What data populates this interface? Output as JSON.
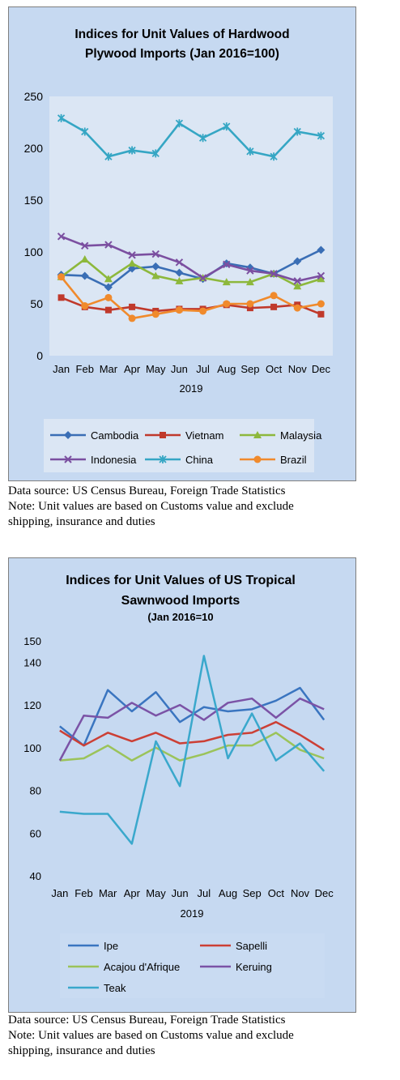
{
  "charts": [
    {
      "chart_data": {
        "type": "line",
        "title_lines": [
          "Indices for Unit Values of Hardwood",
          "Plywood Imports (Jan 2016=100)"
        ],
        "categories": [
          "Jan",
          "Feb",
          "Mar",
          "Apr",
          "May",
          "Jun",
          "Jul",
          "Aug",
          "Sep",
          "Oct",
          "Nov",
          "Dec"
        ],
        "xlabel": "2019",
        "ylim": [
          0,
          250
        ],
        "yticks": [
          0,
          50,
          100,
          150,
          200,
          250
        ],
        "grid": false,
        "legend_position": "bottom",
        "series": [
          {
            "name": "Cambodia",
            "values": [
              78,
              77,
              66,
              84,
              86,
              80,
              74,
              89,
              85,
              79,
              91,
              102
            ],
            "color": "#3a6eb5",
            "marker": "diamond"
          },
          {
            "name": "Vietnam",
            "values": [
              56,
              47,
              44,
              47,
              43,
              45,
              45,
              49,
              46,
              47,
              49,
              40
            ],
            "color": "#c0392b",
            "marker": "square"
          },
          {
            "name": "Malaysia",
            "values": [
              76,
              93,
              74,
              89,
              77,
              72,
              75,
              71,
              71,
              79,
              67,
              74
            ],
            "color": "#8db83c",
            "marker": "triangle"
          },
          {
            "name": "Indonesia",
            "values": [
              115,
              106,
              107,
              97,
              98,
              90,
              75,
              88,
              82,
              79,
              72,
              77
            ],
            "color": "#7b4fa0",
            "marker": "x"
          },
          {
            "name": "China",
            "values": [
              229,
              216,
              192,
              198,
              195,
              224,
              210,
              221,
              197,
              192,
              216,
              212
            ],
            "color": "#35a6c4",
            "marker": "star"
          },
          {
            "name": "Brazil",
            "values": [
              76,
              48,
              56,
              36,
              40,
              44,
              43,
              50,
              50,
              58,
              46,
              50
            ],
            "color": "#f08a2c",
            "marker": "circle"
          }
        ]
      },
      "notes": [
        "Data source: US Census Bureau, Foreign Trade Statistics",
        "Note: Unit values are based on Customs value and exclude",
        "shipping, insurance and duties"
      ]
    },
    {
      "chart_data": {
        "type": "line",
        "title_lines": [
          "Indices for Unit Values of US Tropical",
          "Sawnwood Imports"
        ],
        "subtitle": "(Jan 2016=10",
        "categories": [
          "Jan",
          "Feb",
          "Mar",
          "Apr",
          "May",
          "Jun",
          "Jul",
          "Aug",
          "Sep",
          "Oct",
          "Nov",
          "Dec"
        ],
        "xlabel": "2019",
        "ylim": [
          40,
          150
        ],
        "yticks": [
          40,
          60,
          80,
          100,
          120,
          140,
          150
        ],
        "grid": false,
        "legend_position": "bottom",
        "series": [
          {
            "name": "Ipe",
            "values": [
              110,
              101,
              127,
              117,
              126,
              112,
              119,
              117,
              118,
              122,
              128,
              113
            ],
            "color": "#3a75c0"
          },
          {
            "name": "Sapelli",
            "values": [
              108,
              101,
              107,
              103,
              107,
              102,
              103,
              106,
              107,
              112,
              106,
              99
            ],
            "color": "#cc3f35"
          },
          {
            "name": "Acajou d'Afrique",
            "values": [
              94,
              95,
              101,
              94,
              100,
              94,
              97,
              101,
              101,
              107,
              99,
              95
            ],
            "color": "#9bc35a"
          },
          {
            "name": "Keruing",
            "values": [
              94,
              115,
              114,
              121,
              115,
              120,
              113,
              121,
              123,
              114,
              123,
              118
            ],
            "color": "#7b53a6"
          },
          {
            "name": "Teak",
            "values": [
              70,
              69,
              69,
              55,
              103,
              82,
              143,
              95,
              116,
              94,
              102,
              89
            ],
            "color": "#3aa8cc"
          }
        ]
      },
      "notes": [
        "Data source: US Census Bureau, Foreign Trade Statistics",
        "Note: Unit values are based on Customs value and exclude",
        "shipping, insurance and duties"
      ]
    }
  ]
}
